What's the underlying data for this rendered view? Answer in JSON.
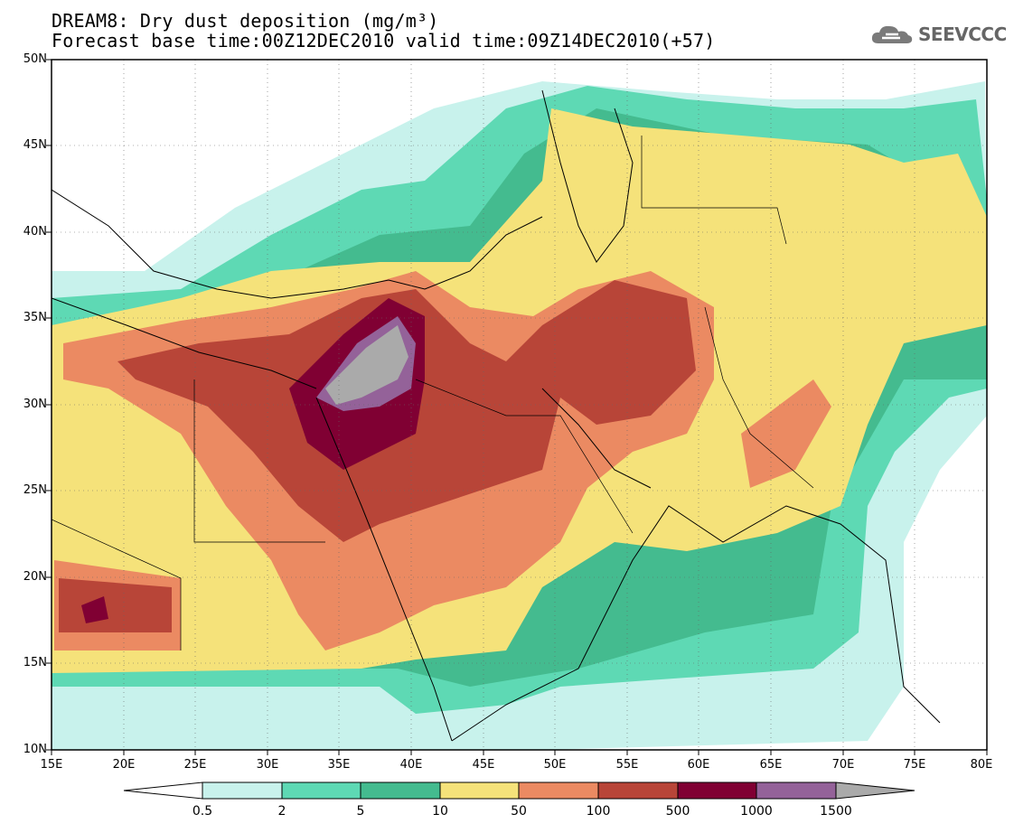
{
  "header": {
    "title_line1": "DREAM8: Dry dust deposition (mg/m³)",
    "title_line2": "Forecast base time:00Z12DEC2010 valid time:09Z14DEC2010(+57)",
    "logo_text": "SEEVCCC"
  },
  "map": {
    "lat_labels": [
      "50N",
      "45N",
      "40N",
      "35N",
      "30N",
      "25N",
      "20N",
      "15N",
      "10N"
    ],
    "lon_labels": [
      "15E",
      "20E",
      "25E",
      "30E",
      "35E",
      "40E",
      "45E",
      "50E",
      "55E",
      "60E",
      "65E",
      "70E",
      "75E",
      "80E"
    ],
    "region": "Middle East / North Africa",
    "variable": "Dry dust deposition"
  },
  "colorbar": {
    "labels": [
      "0.5",
      "2",
      "5",
      "10",
      "50",
      "100",
      "500",
      "1000",
      "1500"
    ],
    "colors": [
      "#ffffff",
      "#c8f2ec",
      "#5ed9b4",
      "#44bb8f",
      "#f5e27a",
      "#eb8a62",
      "#b84538",
      "#800033",
      "#946299",
      "#aaaaaa"
    ]
  }
}
